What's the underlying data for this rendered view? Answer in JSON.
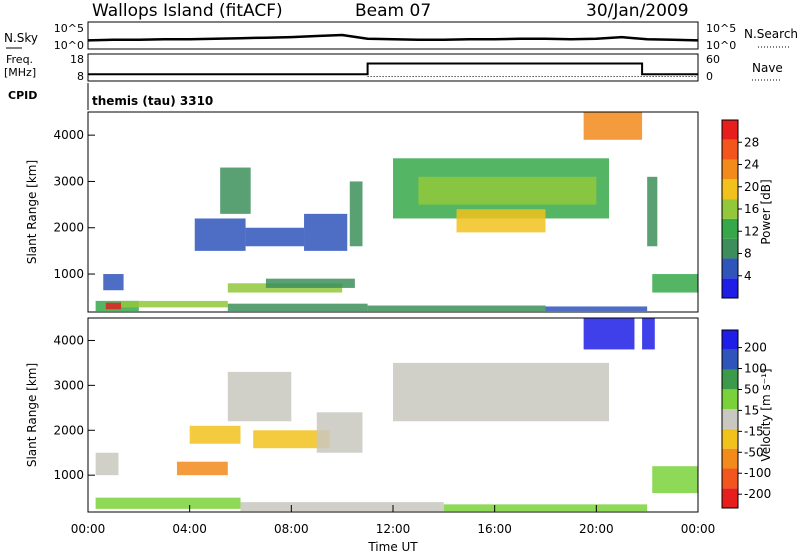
{
  "header": {
    "station": "Wallops Island (fitACF)",
    "beam": "Beam 07",
    "date": "30/Jan/2009"
  },
  "noise_panel": {
    "left_label": "N.Sky",
    "left_ticks": [
      "10^5",
      "10^0"
    ],
    "right_label": "N.Search",
    "right_ticks": [
      "10^5",
      "10^0"
    ]
  },
  "freq_panel": {
    "left_label_1": "Freq.",
    "left_label_2": "[MHz]",
    "left_ticks": [
      "18",
      "8"
    ],
    "right_label": "Nave",
    "right_ticks": [
      "60",
      "0"
    ]
  },
  "cpid_panel": {
    "label": "CPID",
    "program": "themis (tau) 3310"
  },
  "power_panel": {
    "ylabel": "Slant Range [km]",
    "y_ticks": [
      "4000",
      "3000",
      "2000",
      "1000"
    ],
    "colorbar_label": "Power [dB]",
    "colorbar_ticks": [
      "28",
      "24",
      "20",
      "16",
      "12",
      "8",
      "4"
    ]
  },
  "velocity_panel": {
    "ylabel": "Slant Range [km]",
    "y_ticks": [
      "4000",
      "3000",
      "2000",
      "1000"
    ],
    "colorbar_label": "Velocity [m s⁻¹]",
    "colorbar_ticks": [
      "200",
      "100",
      "50",
      "15",
      "-15",
      "-50",
      "-100",
      "-200"
    ]
  },
  "x_axis": {
    "label": "Time UT",
    "ticks": [
      "00:00",
      "04:00",
      "08:00",
      "12:00",
      "16:00",
      "20:00",
      "00:00"
    ]
  },
  "colors": {
    "power_scale": [
      "#1e1ee6",
      "#2f55bb",
      "#3c8f5a",
      "#36a84a",
      "#92c83a",
      "#f2c21c",
      "#f28a1c",
      "#f2561c",
      "#e61e1e"
    ],
    "velocity_scale": [
      "#e61e1e",
      "#f2561c",
      "#f28a1c",
      "#f2c21c",
      "#c8c8c0",
      "#7ad23a",
      "#3c9a4a",
      "#2f55bb",
      "#1e1ee6"
    ]
  },
  "chart_data": [
    {
      "type": "line",
      "title": "N.Sky / N.Search",
      "x_range": [
        "00:00",
        "24:00"
      ],
      "series": [
        {
          "name": "N.Sky",
          "x": [
            0,
            1,
            2,
            3,
            4,
            5,
            6,
            7,
            8,
            9,
            10,
            11,
            12,
            13,
            14,
            15,
            16,
            17,
            18,
            19,
            20,
            21,
            22,
            23,
            24
          ],
          "values": [
            1.6,
            1.7,
            1.7,
            1.8,
            1.8,
            1.9,
            2.0,
            2.1,
            2.2,
            2.4,
            2.6,
            1.9,
            1.8,
            1.7,
            1.7,
            1.8,
            1.8,
            1.9,
            1.9,
            1.8,
            1.9,
            2.2,
            1.8,
            1.7,
            1.6
          ]
        }
      ]
    },
    {
      "type": "line",
      "title": "Freq. / Nave",
      "x_range": [
        "00:00",
        "24:00"
      ],
      "series": [
        {
          "name": "Freq.",
          "x": [
            0,
            11.0,
            11.0,
            21.8,
            21.8,
            24
          ],
          "values": [
            10.5,
            10.5,
            14.5,
            14.5,
            10.5,
            10.5
          ]
        },
        {
          "name": "Nave",
          "x": [
            0,
            11.0,
            11.0,
            24
          ],
          "values": [
            10,
            10,
            10,
            10
          ]
        }
      ]
    },
    {
      "type": "heatmap",
      "title": "Power [dB]",
      "x_range": [
        0,
        24
      ],
      "y_range": [
        180,
        4500
      ],
      "cells": [
        [
          0.6,
          1.4,
          650,
          1000,
          6
        ],
        [
          0.3,
          2.0,
          200,
          420,
          12
        ],
        [
          0.7,
          1.3,
          240,
          380,
          28
        ],
        [
          1.3,
          5.5,
          280,
          420,
          14
        ],
        [
          5.5,
          11.0,
          200,
          360,
          10
        ],
        [
          11.0,
          18.0,
          200,
          320,
          8
        ],
        [
          18.0,
          22.0,
          200,
          300,
          6
        ],
        [
          5.5,
          10.0,
          600,
          800,
          14
        ],
        [
          7.0,
          10.5,
          700,
          900,
          10
        ],
        [
          4.2,
          6.2,
          1500,
          2200,
          6
        ],
        [
          5.2,
          6.4,
          2300,
          3300,
          8
        ],
        [
          6.2,
          8.5,
          1600,
          2000,
          6
        ],
        [
          8.5,
          10.2,
          1500,
          2300,
          5
        ],
        [
          10.3,
          10.8,
          1600,
          3000,
          8
        ],
        [
          12.0,
          20.5,
          2200,
          3500,
          12
        ],
        [
          13.0,
          20.0,
          2500,
          3100,
          16
        ],
        [
          14.5,
          18.0,
          1900,
          2400,
          20
        ],
        [
          19.5,
          21.8,
          3900,
          4500,
          22
        ],
        [
          22.0,
          22.4,
          1600,
          3100,
          10
        ],
        [
          22.2,
          24.0,
          600,
          1000,
          12
        ]
      ]
    },
    {
      "type": "heatmap",
      "title": "Velocity [m s⁻¹]",
      "x_range": [
        0,
        24
      ],
      "y_range": [
        180,
        4500
      ],
      "cells": [
        [
          0.3,
          1.2,
          1000,
          1500,
          0
        ],
        [
          0.3,
          6.0,
          250,
          500,
          40
        ],
        [
          6.0,
          14.0,
          200,
          400,
          10
        ],
        [
          14.0,
          22.0,
          200,
          350,
          20
        ],
        [
          3.5,
          5.5,
          1000,
          1300,
          -60
        ],
        [
          4.0,
          6.0,
          1700,
          2100,
          -30
        ],
        [
          5.5,
          8.0,
          2200,
          3300,
          0
        ],
        [
          6.5,
          9.5,
          1600,
          2000,
          -30
        ],
        [
          9.0,
          10.8,
          1500,
          2400,
          0
        ],
        [
          12.0,
          20.5,
          2200,
          3500,
          0
        ],
        [
          19.5,
          21.5,
          3800,
          4500,
          220
        ],
        [
          21.8,
          22.3,
          3800,
          4500,
          220
        ],
        [
          22.2,
          24.0,
          600,
          1200,
          40
        ]
      ]
    }
  ]
}
